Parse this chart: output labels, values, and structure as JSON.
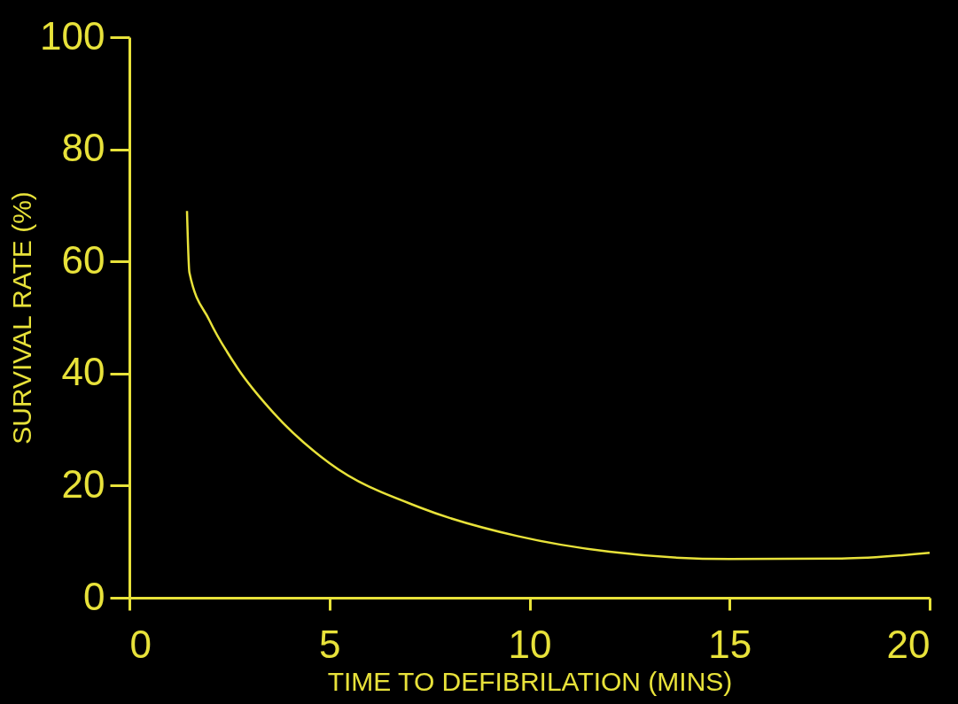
{
  "chart_data": {
    "type": "line",
    "xlabel": "TIME TO DEFIBRILATION (MINS)",
    "ylabel": "SURVIVAL RATE (%)",
    "x": [
      1.44,
      1.5,
      2.0,
      2.7,
      3.6,
      5,
      7.3,
      9.7,
      12,
      15,
      17.8,
      20
    ],
    "series": [
      {
        "color": "#e8e23a",
        "values": [
          69,
          58,
          49.5,
          41,
          33,
          24,
          16,
          11,
          8.2,
          6.9,
          7,
          8
        ]
      }
    ],
    "xlim": [
      0,
      20
    ],
    "xticks": [
      0,
      5,
      10,
      15,
      20
    ],
    "ylim": [
      0,
      100
    ],
    "yticks": [
      0,
      20,
      40,
      60,
      80,
      100
    ],
    "grid": false,
    "marker": "none",
    "line_style": "solid"
  }
}
